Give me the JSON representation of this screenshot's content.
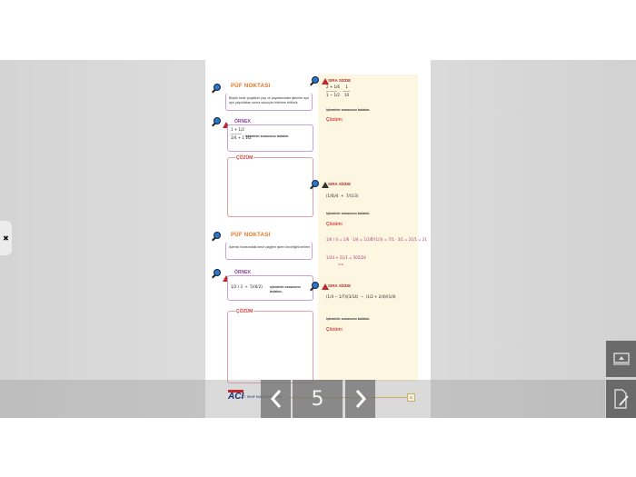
{
  "page": {
    "left": {
      "tip1": {
        "title": "PÜF NOKTASI",
        "text": "Büyük kesir çizgisinin pay ve paydasındaki işlemler ayrı ayrı yapıldıktan sonra sonuçlar birbirine bölünür."
      },
      "example1": {
        "title": "ÖRNEK",
        "expr": "1 + 1/2\n———\n3/4 + 1 1/2",
        "prompt": "işleminin sonucunu bulalım."
      },
      "solution1": {
        "title": "ÇÖZÜM"
      },
      "tip2": {
        "title": "PÜF NOKTASI",
        "text": "İşlemin hizasındaki kesir çizgileri işlem önceliğini belirler."
      },
      "example2": {
        "title": "ÖRNEK",
        "expr": "1/2 / 3  +  5/(6/2)",
        "prompt": "işleminin sonucunu bulalım."
      },
      "solution2": {
        "title": "ÇÖZÜM"
      }
    },
    "right": {
      "q1": {
        "title": "SIRA SİZDE",
        "expr": "2 + 1/6     1\n———  ·  ——\n1 − 1/2    10",
        "prompt": "işleminin sonucunu bulalım.",
        "solution": "Çözüm:"
      },
      "q2": {
        "title": "SIRA SİZDE",
        "expr": "(1/6)/4  +  7/(1/3)",
        "prompt": "işleminin sonucunu bulalım.",
        "solution": "Çözüm:",
        "work1": "1/6 / 4 = 1/6 · 1/4 = 1/24",
        "work2": "7/(1/3) = 7/1 · 3/1 = 21/1 = 21",
        "work3": "1/24 + 21/1 = 505/24",
        "work3_note": "(24)"
      },
      "q3": {
        "title": "SIRA SİZDE",
        "expr": "(1/4 − 1/7)/(3/14)  −  (1/2 + 2/4)/(1/4)",
        "prompt": "işleminin sonucunu bulalım.",
        "solution": "Çözüm:"
      }
    },
    "footer": {
      "brand": "ACI",
      "series": "7. SINIF MATEMATİK",
      "page_label": "(263)"
    }
  },
  "navigation": {
    "current_page": "5",
    "page_badge": "5",
    "prev_icon": "chevron-left-icon",
    "next_icon": "chevron-right-icon"
  },
  "side_buttons": [
    {
      "icon": "presentation-icon"
    },
    {
      "icon": "edit-document-icon"
    }
  ],
  "left_tab": {
    "icon": "tools-icon"
  }
}
